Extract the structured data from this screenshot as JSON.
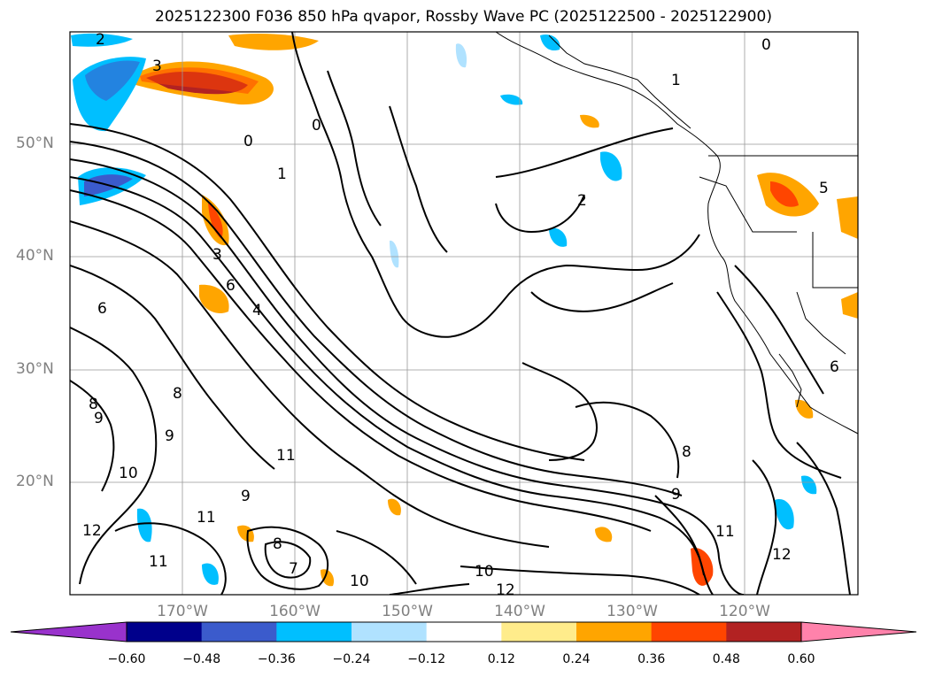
{
  "title": "2025122300 F036 850 hPa qvapor, Rossby Wave PC (2025122500 - 2025122900)",
  "map": {
    "lon_range": [
      -180,
      -110
    ],
    "lat_range": [
      10,
      60
    ],
    "lat_ticks": [
      {
        "value": 50,
        "label": "50°N"
      },
      {
        "value": 40,
        "label": "40°N"
      },
      {
        "value": 30,
        "label": "30°N"
      },
      {
        "value": 20,
        "label": "20°N"
      }
    ],
    "lon_ticks": [
      {
        "value": -170,
        "label": "170°W"
      },
      {
        "value": -160,
        "label": "160°W"
      },
      {
        "value": -150,
        "label": "150°W"
      },
      {
        "value": -140,
        "label": "140°W"
      },
      {
        "value": -130,
        "label": "130°W"
      },
      {
        "value": -120,
        "label": "120°W"
      }
    ],
    "contour_labels": [
      "0",
      "0",
      "0",
      "1",
      "1",
      "2",
      "2",
      "3",
      "4",
      "5",
      "6",
      "6",
      "6",
      "7",
      "8",
      "8",
      "8",
      "8",
      "9",
      "9",
      "9",
      "9",
      "10",
      "10",
      "10",
      "11",
      "11",
      "11",
      "11",
      "12",
      "12",
      "12"
    ],
    "grid": true
  },
  "colorbar": {
    "levels": [
      "−0.60",
      "−0.48",
      "−0.36",
      "−0.24",
      "−0.12",
      "0.12",
      "0.24",
      "0.36",
      "0.48",
      "0.60"
    ],
    "colors": [
      "#9932cc",
      "#00008b",
      "#3b5bcc",
      "#00bfff",
      "#b0e2ff",
      "#ffffff",
      "#ffec8b",
      "#ffa500",
      "#ff4500",
      "#b22222",
      "#ff82ab"
    ],
    "extend": "both"
  }
}
